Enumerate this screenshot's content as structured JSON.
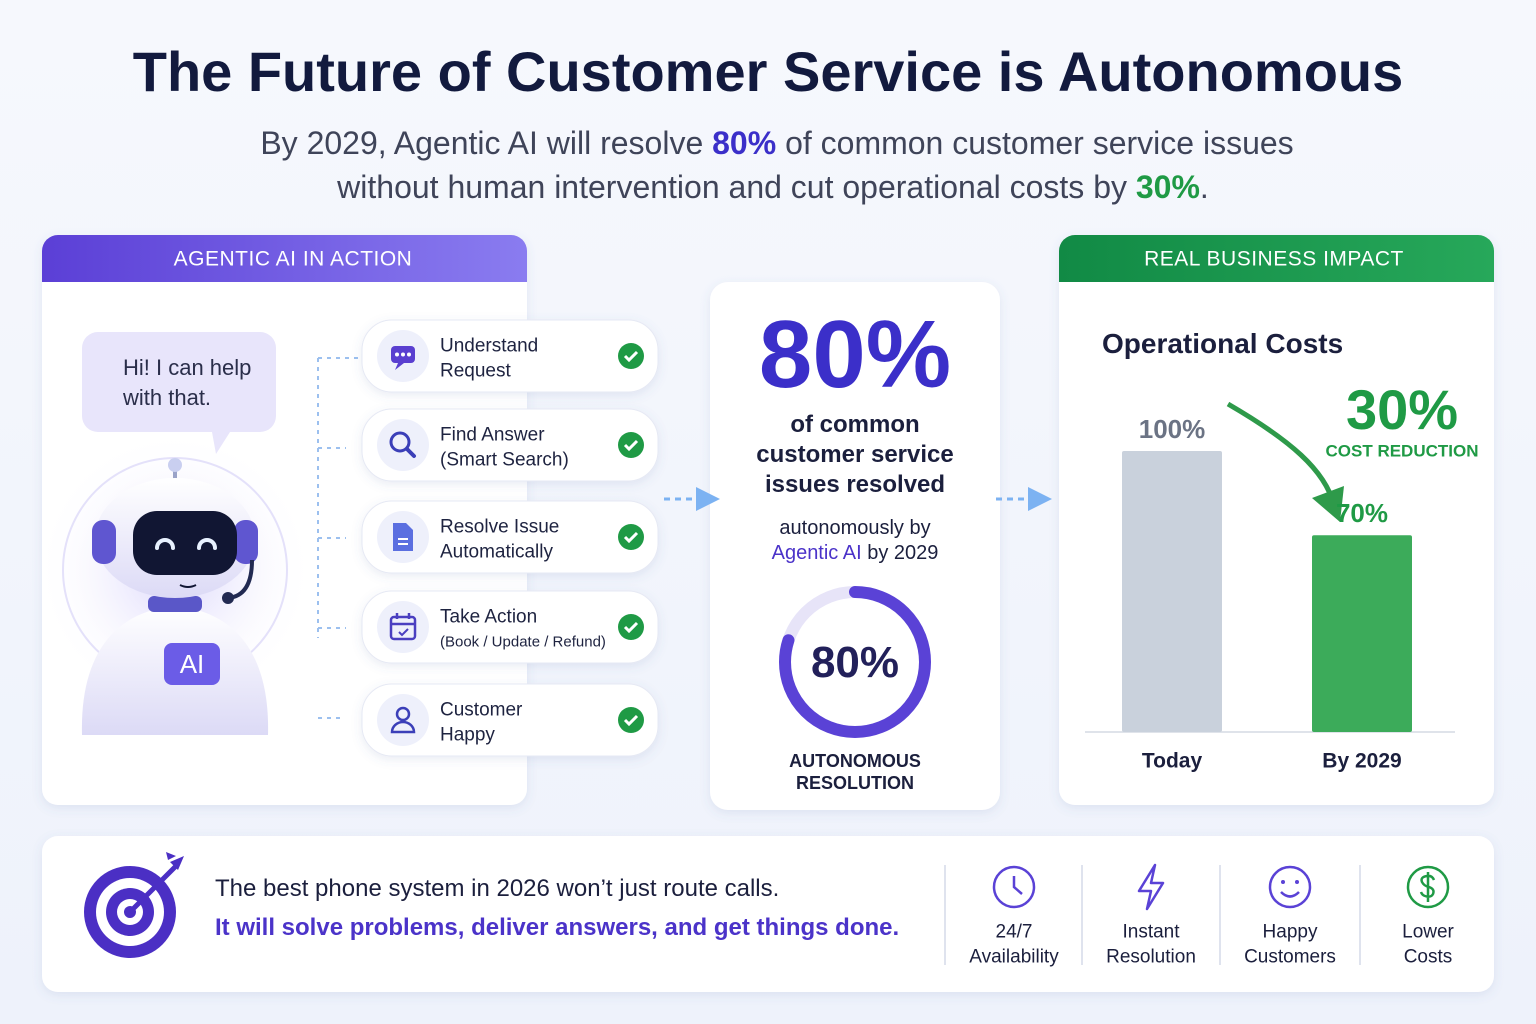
{
  "header": {
    "title": "The Future of Customer Service is Autonomous",
    "subtitle": {
      "line1": [
        "By 2029, Agentic AI will resolve ",
        "80%",
        " of common customer service issues"
      ],
      "line2": [
        "without human intervention and cut operational costs by ",
        "30%",
        "."
      ]
    }
  },
  "agent_panel": {
    "heading": "AGENTIC AI IN ACTION",
    "bubble": [
      "Hi! I can help",
      "with that."
    ],
    "badge": "AI",
    "steps": [
      {
        "lines": [
          "Understand",
          "Request"
        ]
      },
      {
        "lines": [
          "Find Answer",
          "(Smart Search)"
        ]
      },
      {
        "lines": [
          "Resolve Issue",
          "Automatically"
        ]
      },
      {
        "lines": [
          "Take Action",
          "(Book / Update / Refund)"
        ]
      },
      {
        "lines": [
          "Customer",
          "Happy"
        ]
      }
    ]
  },
  "resolution_panel": {
    "headline": "80%",
    "caption": [
      "of common",
      "customer service",
      "issues resolved"
    ],
    "byline": "autonomously by",
    "agent": "Agentic AI",
    "year": " by 2029",
    "ring": {
      "value": 80,
      "label": "80%"
    },
    "ring_caption": [
      "AUTONOMOUS",
      "RESOLUTION"
    ]
  },
  "impact_panel": {
    "heading": "REAL BUSINESS IMPACT",
    "chart": {
      "type": "bar",
      "title": "Operational Costs",
      "categories": [
        "Today",
        "By 2029"
      ],
      "values": [
        100,
        70
      ],
      "value_labels": [
        "100%",
        "70%"
      ],
      "colors": [
        "#c9d1dc",
        "#3cab5a"
      ],
      "annotation": {
        "value": "30%",
        "label": "COST REDUCTION"
      }
    }
  },
  "footer": {
    "lines": [
      "The best phone system in 2026 won’t just route calls.",
      "It will solve problems, deliver answers, and get things done."
    ],
    "features": [
      {
        "lines": [
          "24/7",
          "Availability"
        ]
      },
      {
        "lines": [
          "Instant",
          "Resolution"
        ]
      },
      {
        "lines": [
          "Happy",
          "Customers"
        ]
      },
      {
        "lines": [
          "Lower",
          "Costs"
        ]
      }
    ]
  }
}
